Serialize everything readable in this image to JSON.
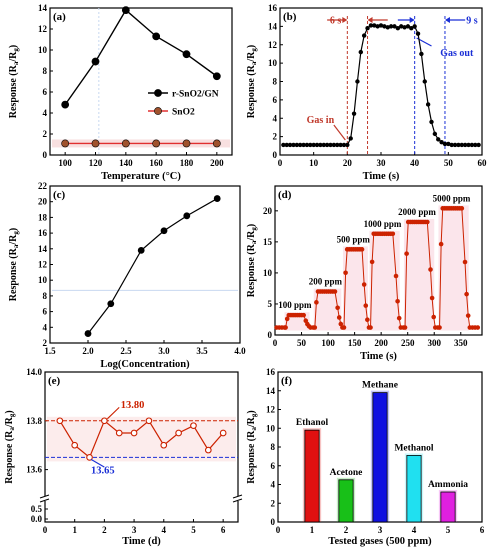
{
  "chart_data": [
    {
      "panel": "(a)",
      "type": "line",
      "xlabel": "Temperature (°C)",
      "ylabel": "Response (R",
      "ylabel_sub1": "a",
      "ylabel_mid": "/R",
      "ylabel_sub2": "g",
      "ylabel_end": ")",
      "x": [
        100,
        120,
        140,
        160,
        180,
        200
      ],
      "xlim": [
        90,
        210
      ],
      "ylim": [
        0,
        14
      ],
      "xticks": [
        "100",
        "120",
        "140",
        "160",
        "180",
        "200"
      ],
      "yticks": [
        "0",
        "2",
        "4",
        "6",
        "8",
        "10",
        "12",
        "14"
      ],
      "legend_position": "middle-right",
      "series": [
        {
          "name": "r-SnO2/GN",
          "color": "#000000",
          "fill": "#000000",
          "values": [
            4.8,
            8.9,
            13.8,
            11.3,
            9.6,
            7.5
          ]
        },
        {
          "name": "SnO2",
          "color": "#e03030",
          "fill": "#a0522d",
          "values": [
            1.1,
            1.1,
            1.1,
            1.1,
            1.1,
            1.1
          ]
        }
      ]
    },
    {
      "panel": "(b)",
      "type": "line",
      "xlabel": "Time (s)",
      "ylabel": "Response (Ra/Rg)",
      "xlim": [
        0,
        60
      ],
      "ylim": [
        0,
        16
      ],
      "xticks": [
        "0",
        "10",
        "20",
        "30",
        "40",
        "50",
        "60"
      ],
      "yticks": [
        "0",
        "2",
        "4",
        "6",
        "8",
        "10",
        "12",
        "14",
        "16"
      ],
      "series": [
        {
          "name": "response",
          "color": "#000000",
          "fill": "#000000",
          "x": [
            1,
            2,
            3,
            4,
            5,
            6,
            7,
            8,
            9,
            10,
            11,
            12,
            13,
            14,
            15,
            16,
            17,
            18,
            19,
            20,
            21,
            22,
            23,
            24,
            25,
            26,
            27,
            28,
            29,
            30,
            31,
            32,
            33,
            34,
            35,
            36,
            37,
            38,
            39,
            40,
            41,
            42,
            43,
            44,
            45,
            46,
            47,
            48,
            49,
            50,
            51,
            52,
            53,
            54,
            55,
            56,
            57,
            58,
            59
          ],
          "values": [
            1.1,
            1.1,
            1.1,
            1.1,
            1.1,
            1.1,
            1.1,
            1.1,
            1.1,
            1.1,
            1.1,
            1.1,
            1.1,
            1.1,
            1.1,
            1.1,
            1.1,
            1.1,
            1.1,
            1.1,
            1.8,
            4.5,
            8.0,
            11.2,
            13.0,
            13.8,
            14.1,
            14.1,
            14.0,
            14.1,
            14.0,
            13.9,
            14.0,
            14.0,
            13.8,
            14.0,
            13.9,
            14.0,
            13.8,
            14.0,
            13.2,
            11.0,
            8.0,
            5.5,
            3.6,
            2.3,
            1.7,
            1.4,
            1.2,
            1.2,
            1.1,
            1.1,
            1.1,
            1.1,
            1.1,
            1.1,
            1.1,
            1.1,
            1.1
          ]
        }
      ],
      "annotations": {
        "t1": "6 s",
        "t2": "9 s",
        "gas_in": "Gas in",
        "gas_out": "Gas out"
      }
    },
    {
      "panel": "(c)",
      "type": "line",
      "xlabel": "Log(Concentration)",
      "ylabel": "Response (Ra/Rg)",
      "xlim": [
        1.5,
        4.0
      ],
      "ylim": [
        2,
        22
      ],
      "xticks": [
        "1.5",
        "2.0",
        "2.5",
        "3.0",
        "3.5",
        "4.0"
      ],
      "yticks": [
        "2",
        "4",
        "6",
        "8",
        "10",
        "12",
        "14",
        "16",
        "18",
        "20",
        "22"
      ],
      "series": [
        {
          "name": "response",
          "color": "#000000",
          "fill": "#000000",
          "x": [
            2.0,
            2.3,
            2.7,
            3.0,
            3.3,
            3.7
          ],
          "values": [
            3.2,
            7.0,
            13.8,
            16.3,
            18.2,
            20.4
          ]
        }
      ]
    },
    {
      "panel": "(d)",
      "type": "line",
      "xlabel": "Time (s)",
      "ylabel": "Response (Ra/Rg)",
      "xlim": [
        0,
        390
      ],
      "ylim": [
        0,
        24
      ],
      "xticks": [
        "0",
        "50",
        "100",
        "150",
        "200",
        "250",
        "300",
        "350"
      ],
      "yticks": [
        "0",
        "5",
        "10",
        "15",
        "20"
      ],
      "pulses": [
        {
          "label": "100 ppm",
          "start": 20,
          "end": 55,
          "peak": 3.2
        },
        {
          "label": "200 ppm",
          "start": 75,
          "end": 115,
          "peak": 7.0
        },
        {
          "label": "500 ppm",
          "start": 130,
          "end": 165,
          "peak": 13.8
        },
        {
          "label": "1000 ppm",
          "start": 180,
          "end": 225,
          "peak": 16.3
        },
        {
          "label": "2000 ppm",
          "start": 245,
          "end": 290,
          "peak": 18.2
        },
        {
          "label": "5000 ppm",
          "start": 310,
          "end": 355,
          "peak": 20.4
        }
      ],
      "baseline": 1.2,
      "color": "#cc2200"
    },
    {
      "panel": "(e)",
      "type": "line",
      "xlabel": "Time (d)",
      "ylabel": "Response (Ra/Rg)",
      "xlim": [
        0,
        6.5
      ],
      "ylim": [
        13.5,
        14.0
      ],
      "xticks": [
        "0",
        "1",
        "2",
        "3",
        "4",
        "5",
        "6"
      ],
      "yticks_upper": [
        "13.6",
        "13.8",
        "14.0"
      ],
      "yticks_lower": [
        "0.0",
        "0.5"
      ],
      "series": [
        {
          "name": "response",
          "color": "#cc2200",
          "fill": "#ffffff",
          "x": [
            0.5,
            1.0,
            1.5,
            2.0,
            2.5,
            3.0,
            3.5,
            4.0,
            4.5,
            5.0,
            5.5,
            6.0
          ],
          "values": [
            13.8,
            13.7,
            13.65,
            13.8,
            13.75,
            13.75,
            13.8,
            13.7,
            13.75,
            13.78,
            13.68,
            13.75
          ]
        }
      ],
      "hlines": [
        {
          "value": 13.8,
          "label": "13.80",
          "color": "#cc2200"
        },
        {
          "value": 13.65,
          "label": "13.65",
          "color": "#1a2fd6"
        }
      ]
    },
    {
      "panel": "(f)",
      "type": "bar",
      "xlabel": "Tested gases (500 ppm)",
      "ylabel": "Response (Ra/Rg)",
      "xlim": [
        0,
        6
      ],
      "ylim": [
        0,
        16
      ],
      "xticks": [
        "0",
        "1",
        "2",
        "3",
        "4",
        "5",
        "6"
      ],
      "yticks": [
        "0",
        "2",
        "4",
        "6",
        "8",
        "10",
        "12",
        "14",
        "16"
      ],
      "categories": [
        "Ethanol",
        "Acetone",
        "Methane",
        "Methanol",
        "Ammonia"
      ],
      "positions": [
        1,
        2,
        3,
        4,
        5
      ],
      "values": [
        9.8,
        4.5,
        13.8,
        7.1,
        3.2
      ],
      "colors": [
        "#e01010",
        "#18c018",
        "#1010e0",
        "#20e0f0",
        "#e020e0"
      ]
    }
  ]
}
